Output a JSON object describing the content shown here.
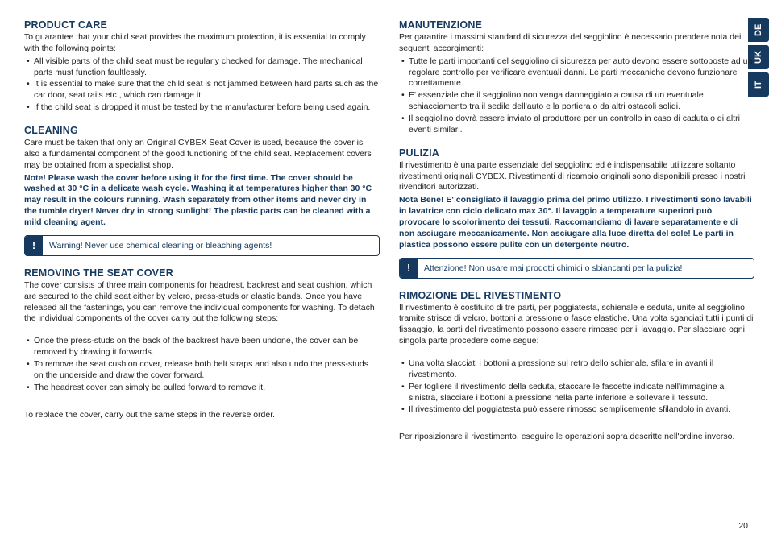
{
  "colors": {
    "heading": "#163a5f",
    "text": "#222222",
    "tab_bg": "#163a5f",
    "tab_text": "#ffffff"
  },
  "langs": [
    "DE",
    "UK",
    "IT"
  ],
  "page_number": "20",
  "left": {
    "s1": {
      "title": "PRODUCT CARE",
      "intro": "To guarantee that your child seat provides the maximum protection, it is essential to comply with the following points:",
      "items": [
        "All visible parts of the child seat must be regularly checked for damage. The mechanical parts must function faultlessly.",
        "It is essential to make sure that the child seat is not jammed between hard parts such as the car door, seat rails etc., which can damage it.",
        "If the child seat is dropped it must be tested by the manufacturer before being used again."
      ]
    },
    "s2": {
      "title": "CLEANING",
      "p1": "Care must be taken that only an Original CYBEX Seat Cover is used, because the cover is also a fundamental component of the good functioning of the child seat. Replacement covers may be obtained from a specialist shop.",
      "note": "Note! Please wash the cover before using it for the first time. The cover should be washed at 30 °C in a delicate wash cycle. Washing it at temperatures higher than 30 °C may result in the colours running. Wash separately from other items and never dry in the tumble dryer! Never dry in strong sunlight! The plastic parts can be cleaned with a mild cleaning agent.",
      "warn": "Warning! Never use chemical cleaning or bleaching agents!"
    },
    "s3": {
      "title": "REMOVING THE SEAT COVER",
      "p1": "The cover consists of three main components for headrest, backrest and seat cushion, which are secured to the child seat either by velcro, press-studs or elastic bands. Once you have released all the fastenings, you can remove the individual components for washing. To detach the individual components of the cover carry out the following steps:",
      "items": [
        "Once the press-studs on the back of the backrest have been undone, the cover can be removed by drawing it forwards.",
        "To remove the seat cushion cover, release both belt straps and also undo the press-studs on the underside and draw the cover forward.",
        "The headrest cover can simply be pulled forward to remove it."
      ],
      "p2": "To replace the cover, carry out the same steps in the reverse order."
    }
  },
  "right": {
    "s1": {
      "title": "MANUTENZIONE",
      "intro": "Per garantire i massimi standard di sicurezza del seggiolino è necessario prendere nota dei seguenti accorgimenti:",
      "items": [
        "Tutte le parti importanti del seggiolino di sicurezza per auto devono essere sottoposte ad un regolare controllo per verificare eventuali danni. Le parti meccaniche devono funzionare correttamente.",
        "E' essenziale che il seggiolino non venga danneggiato a causa di un eventuale schiacciamento tra il sedile dell'auto e la portiera o da altri ostacoli solidi.",
        "Il seggiolino dovrà essere inviato al produttore per un controllo in caso di caduta o di altri eventi similari."
      ]
    },
    "s2": {
      "title": "PULIZIA",
      "p1": "Il rivestimento è una parte essenziale del seggiolino ed è indispensabile utilizzare soltanto rivestimenti originali CYBEX. Rivestimenti di ricambio originali sono disponibili presso i nostri rivenditori autorizzati.",
      "note": "Nota Bene! E' consigliato il lavaggio prima del primo utilizzo. I rivestimenti sono lavabili in lavatrice con ciclo delicato max 30°. Il lavaggio a temperature superiori può provocare lo scolorimento dei tessuti. Raccomandiamo di lavare separatamente e di non asciugare meccanicamente. Non asciugare alla luce diretta del sole! Le parti in plastica possono essere pulite con un detergente neutro.",
      "warn": "Attenzione! Non usare mai prodotti chimici o sbiancanti per la pulizia!"
    },
    "s3": {
      "title": "RIMOZIONE DEL RIVESTIMENTO",
      "p1": "Il rivestimento è costituito di tre parti, per poggiatesta, schienale e seduta, unite al seggiolino tramite strisce di velcro, bottoni a pressione o fasce elastiche. Una volta sganciati tutti i punti di fissaggio, la parti del rivestimento possono essere rimosse per il lavaggio. Per slacciare ogni singola parte procedere come segue:",
      "items": [
        "Una volta slacciati i bottoni a pressione sul retro dello schienale, sfilare in avanti il rivestimento.",
        "Per togliere il rivestimento della seduta, staccare le fascette indicate nell'immagine a sinistra, slacciare i bottoni a pressione nella parte inferiore e sollevare il tessuto.",
        "Il rivestimento del poggiatesta può essere rimosso semplicemente sfilandolo in avanti."
      ],
      "p2": "Per riposizionare il rivestimento, eseguire le operazioni sopra descritte nell'ordine inverso."
    }
  }
}
